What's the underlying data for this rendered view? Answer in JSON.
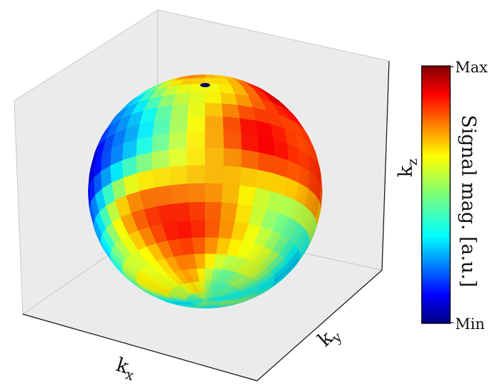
{
  "chart_data": {
    "type": "heatmap",
    "subtype": "3d-sphere-surface",
    "title": "",
    "xlabel": "k_x",
    "ylabel": "k_y",
    "zlabel": "k_z",
    "colormap": "jet",
    "grid": false,
    "colorbar": {
      "label": "Signal mag. [a.u.]",
      "ticks": [
        "Min",
        "Max"
      ],
      "placement": "right"
    },
    "colors": {
      "pane": "#ebebeb",
      "pane_edge": "#c8c8c8",
      "axis_line": "#111111"
    },
    "surface_features": [
      {
        "name": "hotspot-right",
        "lon": 55,
        "lat": 25,
        "value": 0.95
      },
      {
        "name": "hotspot-lower-left",
        "lon": -25,
        "lat": -30,
        "value": 0.85
      },
      {
        "name": "band-top",
        "lon": -5,
        "lat": 65,
        "value": 0.7
      },
      {
        "name": "cold-left",
        "lon": -65,
        "lat": 10,
        "value": 0.1
      },
      {
        "name": "pole-marker",
        "lon": 0,
        "lat": 90,
        "value": 0.0
      }
    ]
  }
}
